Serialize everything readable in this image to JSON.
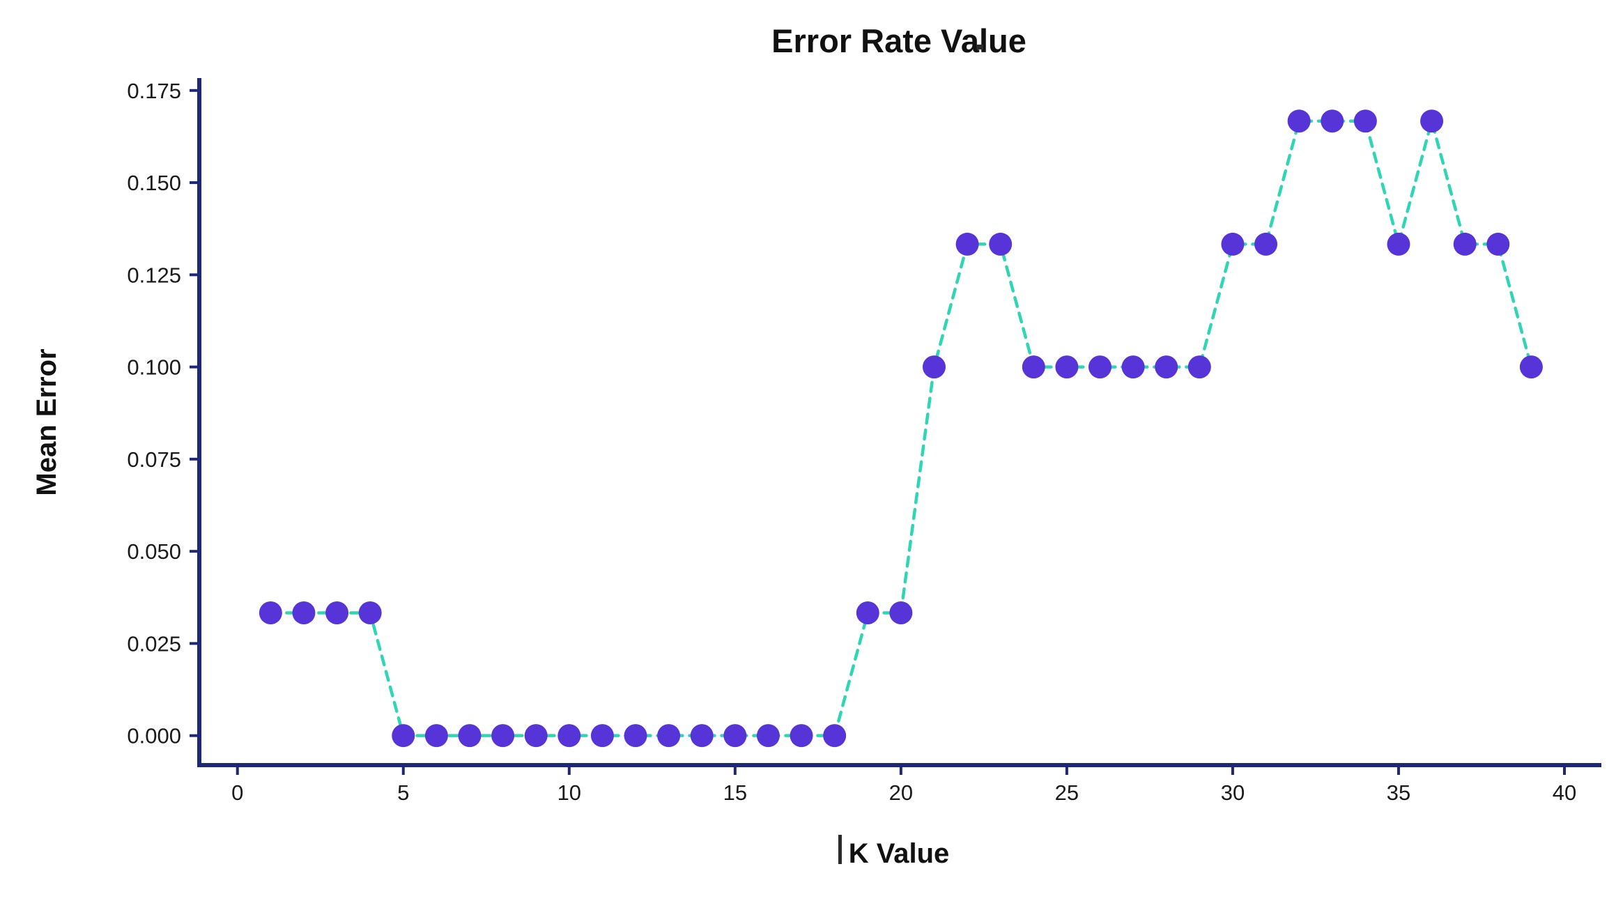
{
  "chart_data": {
    "type": "line",
    "title": "Error Rate Value",
    "xlabel": "K Value",
    "ylabel": "Mean Error",
    "x": [
      1,
      2,
      3,
      4,
      5,
      6,
      7,
      8,
      9,
      10,
      11,
      12,
      13,
      14,
      15,
      16,
      17,
      18,
      19,
      20,
      21,
      22,
      23,
      24,
      25,
      26,
      27,
      28,
      29,
      30,
      31,
      32,
      33,
      34,
      35,
      36,
      37,
      38,
      39
    ],
    "y": [
      0.0333,
      0.0333,
      0.0333,
      0.0333,
      0.0,
      0.0,
      0.0,
      0.0,
      0.0,
      0.0,
      0.0,
      0.0,
      0.0,
      0.0,
      0.0,
      0.0,
      0.0,
      0.0,
      0.0333,
      0.0333,
      0.1,
      0.1333,
      0.1333,
      0.1,
      0.1,
      0.1,
      0.1,
      0.1,
      0.1,
      0.1333,
      0.1333,
      0.1667,
      0.1667,
      0.1667,
      0.1333,
      0.1667,
      0.1333,
      0.1333,
      0.1
    ],
    "xticks": [
      0,
      5,
      10,
      15,
      20,
      25,
      30,
      35,
      40
    ],
    "yticks": [
      0.0,
      0.025,
      0.05,
      0.075,
      0.1,
      0.125,
      0.15,
      0.175
    ],
    "ytick_labels": [
      "0.000",
      "0.025",
      "0.050",
      "0.075",
      "0.100",
      "0.125",
      "0.150",
      "0.175"
    ],
    "xlim": [
      -1.15,
      41.05
    ],
    "ylim": [
      -0.008,
      0.1778
    ],
    "grid": false,
    "legend": null,
    "line_style": "dashed",
    "marker": "circle",
    "colors": {
      "line": "#2fd6b4",
      "marker": "#5634d8",
      "axis": "#1e2878",
      "tick_text": "#1a1a1a",
      "title_text": "#111111"
    }
  }
}
